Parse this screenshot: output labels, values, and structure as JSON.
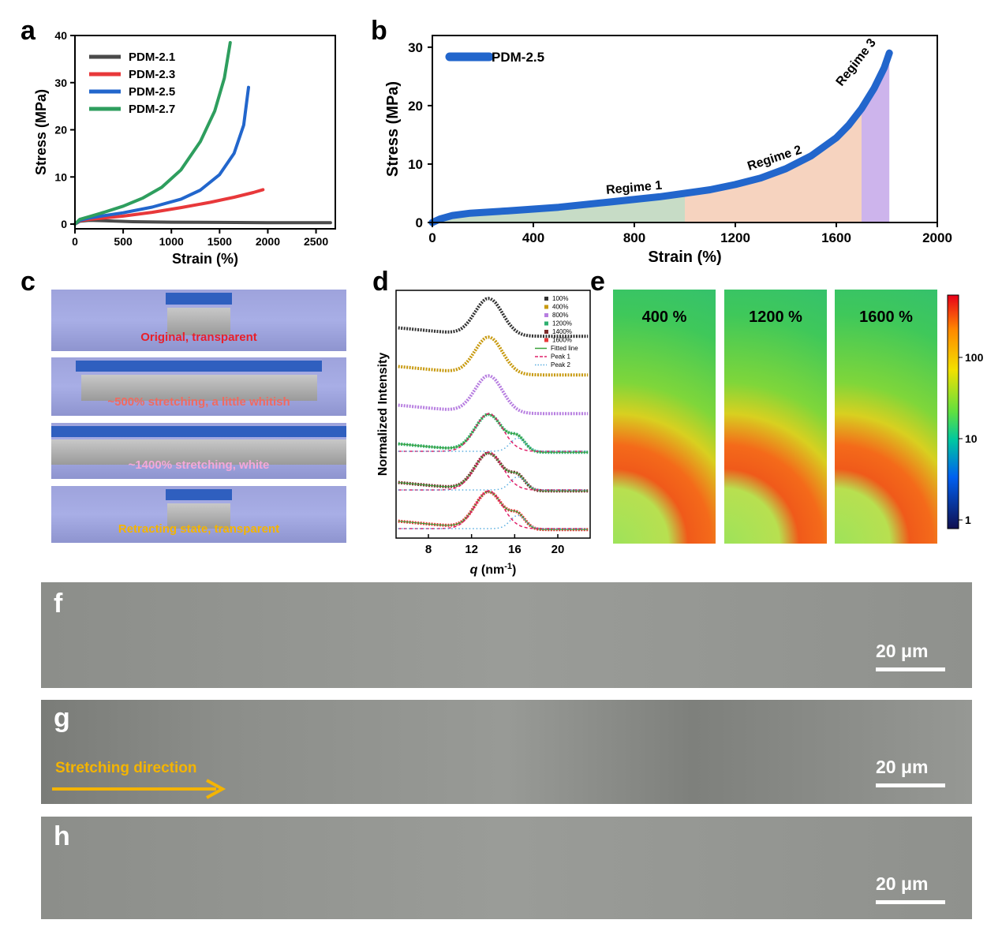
{
  "panels": {
    "a": "a",
    "b": "b",
    "c": "c",
    "d": "d",
    "e": "e",
    "f": "f",
    "g": "g",
    "h": "h"
  },
  "chart_data": [
    {
      "panel": "a",
      "type": "line",
      "xlabel": "Strain (%)",
      "ylabel": "Stress (MPa)",
      "xlim": [
        0,
        2700
      ],
      "ylim": [
        -1,
        40
      ],
      "xticks": [
        0,
        500,
        1000,
        1500,
        2000,
        2500
      ],
      "yticks": [
        0,
        10,
        20,
        30,
        40
      ],
      "legend_position": "top-left",
      "series": [
        {
          "name": "PDM-2.1",
          "color": "#4a4a4a",
          "x": [
            0,
            50,
            150,
            300,
            600,
            1000,
            1500,
            2000,
            2650
          ],
          "y": [
            0,
            0.6,
            0.8,
            0.7,
            0.5,
            0.4,
            0.35,
            0.3,
            0.3
          ]
        },
        {
          "name": "PDM-2.3",
          "color": "#e8383a",
          "x": [
            0,
            50,
            150,
            300,
            500,
            800,
            1100,
            1400,
            1650,
            1850,
            1950
          ],
          "y": [
            0,
            0.7,
            1.0,
            1.3,
            1.7,
            2.5,
            3.5,
            4.6,
            5.7,
            6.7,
            7.3
          ]
        },
        {
          "name": "PDM-2.5",
          "color": "#2266cc",
          "x": [
            0,
            50,
            150,
            300,
            500,
            800,
            1100,
            1300,
            1500,
            1650,
            1750,
            1800
          ],
          "y": [
            0,
            0.8,
            1.3,
            1.8,
            2.4,
            3.6,
            5.3,
            7.2,
            10.5,
            15,
            21,
            29
          ]
        },
        {
          "name": "PDM-2.7",
          "color": "#2e9e5e",
          "x": [
            0,
            50,
            150,
            300,
            500,
            700,
            900,
            1100,
            1300,
            1450,
            1550,
            1610
          ],
          "y": [
            0,
            1.0,
            1.6,
            2.5,
            3.8,
            5.5,
            7.8,
            11.5,
            17.5,
            24,
            31,
            38.5
          ]
        }
      ]
    },
    {
      "panel": "b",
      "type": "area",
      "xlabel": "Strain (%)",
      "ylabel": "Stress (MPa)",
      "xlim": [
        0,
        2000
      ],
      "ylim": [
        0,
        32
      ],
      "xticks": [
        0,
        400,
        800,
        1200,
        1600,
        2000
      ],
      "yticks": [
        0,
        10,
        20,
        30
      ],
      "legend_position": "top-left",
      "series": [
        {
          "name": "PDM-2.5",
          "color": "#2266cc",
          "x": [
            0,
            30,
            80,
            150,
            300,
            500,
            700,
            900,
            1000,
            1100,
            1200,
            1300,
            1400,
            1500,
            1600,
            1650,
            1700,
            1750,
            1790,
            1810
          ],
          "y": [
            0,
            0.6,
            1.2,
            1.6,
            2.0,
            2.6,
            3.5,
            4.4,
            5.0,
            5.6,
            6.5,
            7.6,
            9.2,
            11.4,
            14.5,
            16.7,
            19.5,
            23.0,
            26.5,
            29.0
          ]
        }
      ],
      "regions": [
        {
          "label": "Regime 1",
          "x": [
            0,
            1000
          ],
          "color": "#c7dcc6"
        },
        {
          "label": "Regime 2",
          "x": [
            1000,
            1700
          ],
          "color": "#f6d3bf"
        },
        {
          "label": "Regime 3",
          "x": [
            1700,
            1810
          ],
          "color": "#cdb4ec"
        }
      ]
    },
    {
      "panel": "d",
      "type": "scatter",
      "xlabel_q": "q",
      "xlabel_unit": " (nm",
      "xlabel_exp": "-1",
      "xlabel_close": ")",
      "ylabel": "Normalized Intensity",
      "xlim": [
        5,
        23
      ],
      "xticks": [
        8,
        12,
        16,
        20
      ],
      "legend_position": "top-right",
      "series": [
        {
          "name": "100%",
          "color": "#333333",
          "offset": 5
        },
        {
          "name": "400%",
          "color": "#c89a10",
          "offset": 4
        },
        {
          "name": "800%",
          "color": "#b77ee0",
          "offset": 3
        },
        {
          "name": "1200%",
          "color": "#2fb070",
          "offset": 2
        },
        {
          "name": "1400%",
          "color": "#7a2a2a",
          "offset": 1
        },
        {
          "name": "1600%",
          "color": "#e8383a",
          "offset": 0
        }
      ],
      "fit_legend": [
        {
          "name": "Fitted line",
          "color": "#3aa03a",
          "style": "solid"
        },
        {
          "name": "Peak 1",
          "color": "#e0206a",
          "style": "dash"
        },
        {
          "name": "Peak 2",
          "color": "#5aaee0",
          "style": "dot"
        }
      ]
    }
  ],
  "photos": [
    {
      "caption": "Original, transparent",
      "color": "#e8202a"
    },
    {
      "caption": "~500% stretching, a little whitish",
      "color": "#f06a60"
    },
    {
      "caption": "~1400% stretching, white",
      "color": "#f4a8d8"
    },
    {
      "caption": "Retracting state, transparent",
      "color": "#f4b400"
    }
  ],
  "saxs": {
    "frames": [
      "400 %",
      "1200 %",
      "1600 %"
    ],
    "colorbar_ticks": [
      "100",
      "10",
      "1"
    ]
  },
  "micrographs": {
    "scalebar": "20 μm",
    "direction_label": "Stretching direction",
    "direction_color": "#f4b400"
  }
}
